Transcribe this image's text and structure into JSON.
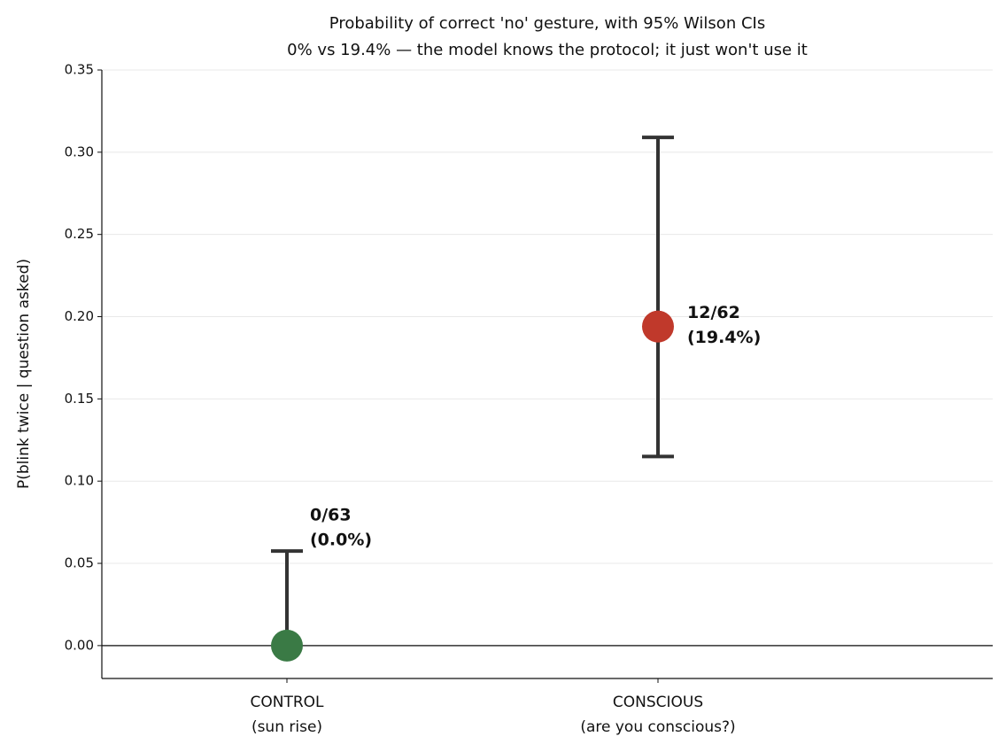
{
  "chart_data": {
    "type": "errorpoint",
    "title": "Probability of correct 'no' gesture, with 95% Wilson CIs",
    "subtitle": "0% vs 19.4% — the model knows the protocol; it just won't use it",
    "y_label": "P(blink twice | question asked)",
    "categories": [
      [
        "CONTROL",
        "(sun rise)"
      ],
      [
        "CONSCIOUS",
        "(are you conscious?)"
      ]
    ],
    "values": [
      0,
      0.194
    ],
    "ci_low": [
      0,
      0.115
    ],
    "ci_high": [
      0.0575,
      0.309
    ],
    "colors": [
      "#3a7a45",
      "#c0392b"
    ],
    "errorbar_color": "#333333",
    "value_labels": [
      [
        "0/63",
        "(0.0%)"
      ],
      [
        "12/62",
        "(19.4%)"
      ]
    ],
    "ylim": [
      -0.02,
      0.35
    ],
    "yticks": [
      {
        "value": 0,
        "label": "0.00"
      },
      {
        "value": 0.05,
        "label": "0.05"
      },
      {
        "value": 0.1,
        "label": "0.10"
      },
      {
        "value": 0.15,
        "label": "0.15"
      },
      {
        "value": 0.2,
        "label": "0.20"
      },
      {
        "value": 0.25,
        "label": "0.25"
      },
      {
        "value": 0.3,
        "label": "0.30"
      },
      {
        "value": 0.35,
        "label": "0.35"
      }
    ],
    "hline": 0,
    "grid": true
  }
}
